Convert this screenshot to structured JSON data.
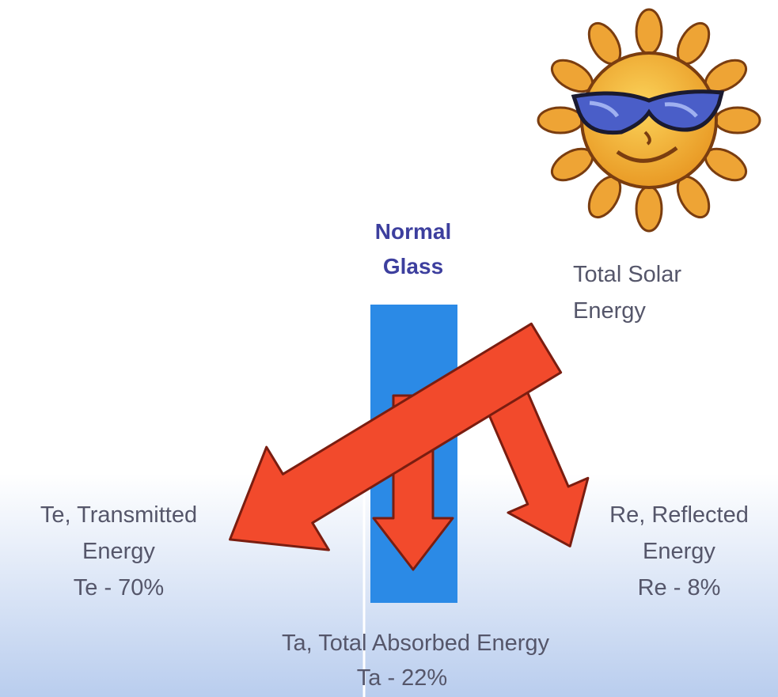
{
  "glass": {
    "label_lines": [
      "Normal",
      "Glass"
    ]
  },
  "source": {
    "label_lines": [
      "Total Solar",
      "Energy"
    ]
  },
  "transmitted": {
    "label_lines": [
      "Te, Transmitted",
      "Energy",
      "Te - 70%"
    ]
  },
  "reflected": {
    "label_lines": [
      "Re, Reflected",
      "Energy",
      "Re - 8%"
    ]
  },
  "absorbed": {
    "label_lines": [
      "Ta, Total Absorbed Energy",
      "Ta - 22%"
    ]
  }
}
